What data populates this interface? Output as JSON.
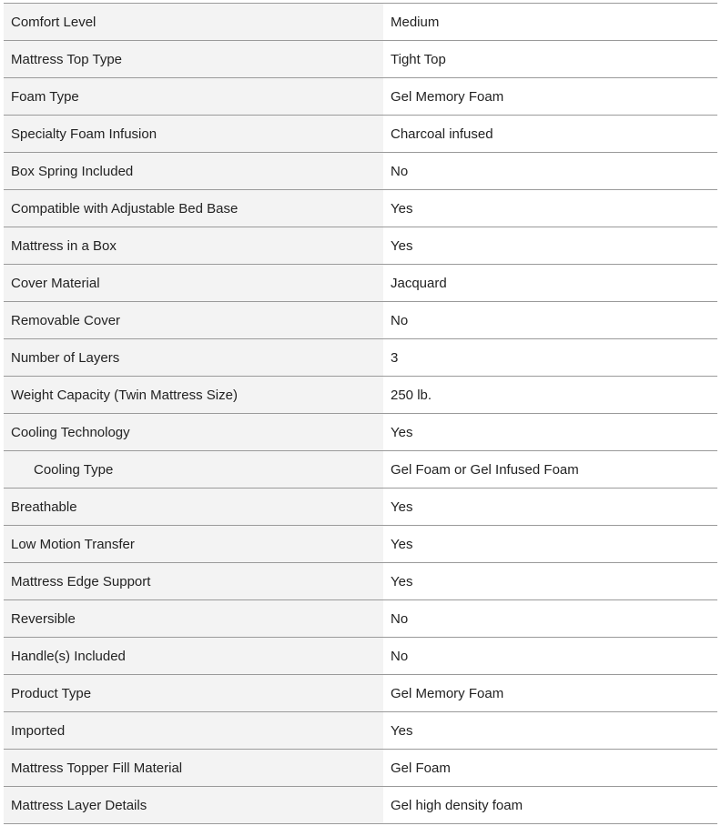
{
  "specs": [
    {
      "label": "Comfort Level",
      "value": "Medium"
    },
    {
      "label": "Mattress Top Type",
      "value": "Tight Top"
    },
    {
      "label": "Foam Type",
      "value": "Gel Memory Foam"
    },
    {
      "label": "Specialty Foam Infusion",
      "value": "Charcoal infused"
    },
    {
      "label": "Box Spring Included",
      "value": "No"
    },
    {
      "label": "Compatible with Adjustable Bed Base",
      "value": "Yes"
    },
    {
      "label": "Mattress in a Box",
      "value": "Yes"
    },
    {
      "label": "Cover Material",
      "value": "Jacquard"
    },
    {
      "label": "Removable Cover",
      "value": "No"
    },
    {
      "label": "Number of Layers",
      "value": "3"
    },
    {
      "label": "Weight Capacity (Twin Mattress Size)",
      "value": "250 lb."
    },
    {
      "label": "Cooling Technology",
      "value": "Yes"
    },
    {
      "label": "Cooling Type",
      "value": "Gel Foam or Gel Infused Foam",
      "indent": true
    },
    {
      "label": "Breathable",
      "value": "Yes"
    },
    {
      "label": "Low Motion Transfer",
      "value": "Yes"
    },
    {
      "label": "Mattress Edge Support",
      "value": "Yes"
    },
    {
      "label": "Reversible",
      "value": "No"
    },
    {
      "label": "Handle(s) Included",
      "value": "No"
    },
    {
      "label": "Product Type",
      "value": "Gel Memory Foam"
    },
    {
      "label": "Imported",
      "value": "Yes"
    },
    {
      "label": "Mattress Topper Fill Material",
      "value": "Gel Foam"
    },
    {
      "label": "Mattress Layer Details",
      "value": "Gel high density foam"
    }
  ]
}
